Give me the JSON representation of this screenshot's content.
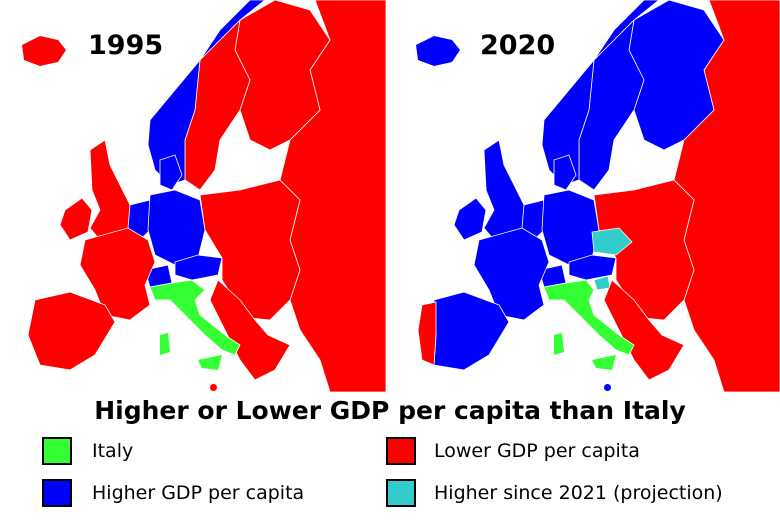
{
  "maps": [
    {
      "year": "1995"
    },
    {
      "year": "2020"
    }
  ],
  "title": "Higher or Lower GDP per capita than Italy",
  "legend": [
    {
      "label": "Italy",
      "color": "#33ff33"
    },
    {
      "label": "Lower GDP per capita",
      "color": "#ff0000"
    },
    {
      "label": "Higher GDP per capita",
      "color": "#0000ff"
    },
    {
      "label": "Higher since 2021 (projection)",
      "color": "#33cccc"
    }
  ],
  "colors": {
    "italy": "#33ff33",
    "lower": "#ff0000",
    "higher": "#0000ff",
    "projection": "#33cccc",
    "sea": "#ffffff"
  }
}
